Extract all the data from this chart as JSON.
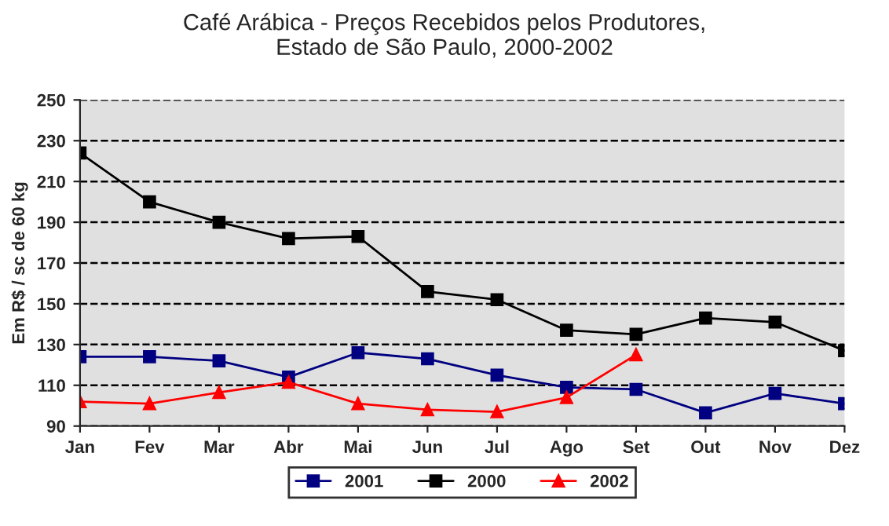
{
  "chart_data": {
    "type": "line",
    "title": "Café Arábica - Preços Recebidos pelos Produtores,\nEstado de São Paulo, 2000-2002",
    "ylabel": "Em R$ / sc de 60 kg",
    "categories": [
      "Jan",
      "Fev",
      "Mar",
      "Abr",
      "Mai",
      "Jun",
      "Jul",
      "Ago",
      "Set",
      "Out",
      "Nov",
      "Dez"
    ],
    "series": [
      {
        "name": "2001",
        "color": "#000080",
        "marker": "square",
        "values": [
          124,
          124,
          122,
          114,
          126,
          123,
          115,
          109,
          108,
          96.5,
          106,
          101
        ]
      },
      {
        "name": "2000",
        "color": "#000000",
        "marker": "square",
        "values": [
          224,
          200,
          190,
          182,
          183,
          156,
          152,
          137,
          135,
          143,
          141,
          127
        ]
      },
      {
        "name": "2002",
        "color": "#ff0000",
        "marker": "triangle",
        "values": [
          102,
          101,
          106.5,
          111.5,
          101,
          98,
          97,
          104,
          125,
          null,
          null,
          null
        ]
      }
    ],
    "ylim": [
      90,
      250
    ],
    "yticks": [
      90,
      110,
      130,
      150,
      170,
      190,
      210,
      230,
      250
    ],
    "grid": "y",
    "legend": "bottom",
    "line_style": "solid"
  }
}
